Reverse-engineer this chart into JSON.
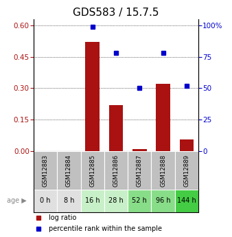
{
  "title": "GDS583 / 15.7.5",
  "samples": [
    "GSM12883",
    "GSM12884",
    "GSM12885",
    "GSM12886",
    "GSM12887",
    "GSM12888",
    "GSM12889"
  ],
  "ages": [
    "0 h",
    "8 h",
    "16 h",
    "28 h",
    "52 h",
    "96 h",
    "144 h"
  ],
  "log_ratio": [
    0.0,
    0.0,
    0.52,
    0.22,
    0.01,
    0.32,
    0.055
  ],
  "percentile_rank": [
    null,
    null,
    99,
    78,
    50,
    78,
    52
  ],
  "bar_color": "#aa1111",
  "dot_color": "#0000cc",
  "left_yticks": [
    0,
    0.15,
    0.3,
    0.45,
    0.6
  ],
  "left_ylim": [
    0,
    0.63
  ],
  "right_yticks": [
    0,
    25,
    50,
    75,
    100
  ],
  "right_ylim": [
    0,
    105
  ],
  "age_bg_colors": [
    "#e0e0e0",
    "#e0e0e0",
    "#c8f0c8",
    "#c8f0c8",
    "#88dd88",
    "#88dd88",
    "#44cc44"
  ],
  "sample_bg_color": "#c0c0c0",
  "title_fontsize": 11,
  "tick_fontsize": 7.5,
  "label_fontsize": 7
}
